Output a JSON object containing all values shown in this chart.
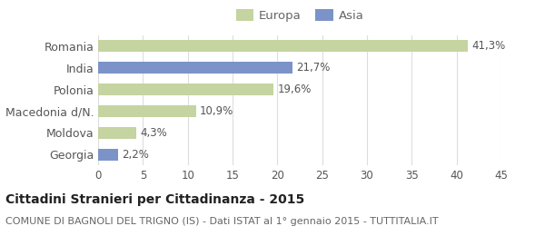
{
  "categories": [
    "Romania",
    "India",
    "Polonia",
    "Macedonia d/N.",
    "Moldova",
    "Georgia"
  ],
  "values": [
    41.3,
    21.7,
    19.6,
    10.9,
    4.3,
    2.2
  ],
  "labels": [
    "41,3%",
    "21,7%",
    "19,6%",
    "10,9%",
    "4,3%",
    "2,2%"
  ],
  "colors": [
    "#c5d4a0",
    "#7b93c8",
    "#c5d4a0",
    "#c5d4a0",
    "#c5d4a0",
    "#7b93c8"
  ],
  "legend_items": [
    {
      "label": "Europa",
      "color": "#c5d4a0"
    },
    {
      "label": "Asia",
      "color": "#7b93c8"
    }
  ],
  "xlim": [
    0,
    45
  ],
  "xticks": [
    0,
    5,
    10,
    15,
    20,
    25,
    30,
    35,
    40,
    45
  ],
  "title_bold": "Cittadini Stranieri per Cittadinanza - 2015",
  "subtitle": "COMUNE DI BAGNOLI DEL TRIGNO (IS) - Dati ISTAT al 1° gennaio 2015 - TUTTITALIA.IT",
  "background_color": "#ffffff",
  "bar_height": 0.55,
  "label_fontsize": 8.5,
  "ytick_fontsize": 9,
  "xtick_fontsize": 8.5,
  "title_fontsize": 10,
  "subtitle_fontsize": 8
}
